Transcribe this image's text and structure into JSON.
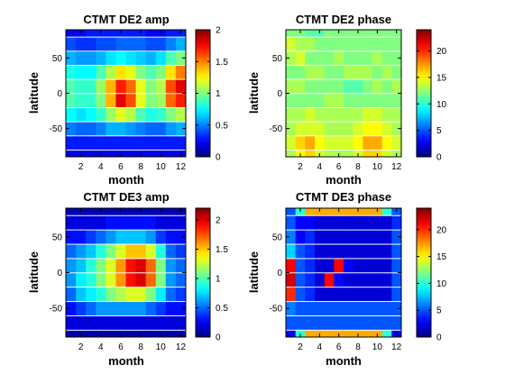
{
  "figure": {
    "panels": [
      {
        "id": "de2-amp",
        "title": "CTMT DE2 amp",
        "xlabel": "month",
        "ylabel": "latitude",
        "x_ticks": [
          "2",
          "4",
          "6",
          "8",
          "10",
          "12"
        ],
        "y_ticks": [
          "50",
          "0",
          "-50"
        ],
        "colorbar_ticks": [
          "2",
          "1.5",
          "1",
          "0.5",
          "0"
        ]
      },
      {
        "id": "de2-phase",
        "title": "CTMT DE2 phase",
        "xlabel": "month",
        "ylabel": "latitude",
        "x_ticks": [
          "2",
          "4",
          "6",
          "8",
          "10",
          "12"
        ],
        "y_ticks": [
          "50",
          "0",
          "-50"
        ],
        "colorbar_ticks": [
          "20",
          "15",
          "10",
          "5",
          "0"
        ]
      },
      {
        "id": "de3-amp",
        "title": "CTMT DE3 amp",
        "xlabel": "month",
        "ylabel": "latitude",
        "x_ticks": [
          "2",
          "4",
          "6",
          "8",
          "10",
          "12"
        ],
        "y_ticks": [
          "50",
          "0",
          "-50"
        ],
        "colorbar_ticks": [
          "2",
          "1.5",
          "1",
          "0.5",
          "0"
        ]
      },
      {
        "id": "de3-phase",
        "title": "CTMT DE3 phase",
        "xlabel": "month",
        "ylabel": "latitude",
        "x_ticks": [
          "2",
          "4",
          "6",
          "8",
          "10",
          "12"
        ],
        "y_ticks": [
          "50",
          "0",
          "-50"
        ],
        "colorbar_ticks": [
          "20",
          "15",
          "10",
          "5",
          "0"
        ]
      }
    ]
  },
  "chart_data": [
    {
      "type": "heatmap",
      "title": "CTMT DE2 amp",
      "xlabel": "month",
      "ylabel": "latitude",
      "x": [
        1,
        2,
        3,
        4,
        5,
        6,
        7,
        8,
        9,
        10,
        11,
        12
      ],
      "y": [
        90,
        70,
        50,
        30,
        10,
        -10,
        -30,
        -50,
        -70,
        -90
      ],
      "z": [
        [
          0.2,
          0.25,
          0.3,
          0.3,
          0.3,
          0.3,
          0.3,
          0.3,
          0.25,
          0.25,
          0.3,
          0.3
        ],
        [
          0.4,
          0.35,
          0.35,
          0.4,
          0.4,
          0.45,
          0.45,
          0.45,
          0.4,
          0.4,
          0.5,
          0.6
        ],
        [
          0.6,
          0.55,
          0.55,
          0.6,
          0.7,
          0.75,
          0.7,
          0.65,
          0.6,
          0.7,
          0.9,
          1.0
        ],
        [
          0.8,
          0.75,
          0.75,
          0.9,
          1.1,
          1.3,
          1.2,
          1.0,
          0.9,
          1.0,
          1.3,
          1.5
        ],
        [
          0.9,
          0.85,
          0.85,
          1.05,
          1.4,
          1.7,
          1.55,
          1.2,
          1.0,
          1.1,
          1.6,
          1.8
        ],
        [
          0.9,
          0.85,
          0.85,
          1.0,
          1.4,
          1.8,
          1.6,
          1.2,
          1.0,
          1.05,
          1.55,
          1.7
        ],
        [
          0.75,
          0.7,
          0.75,
          0.85,
          1.05,
          1.2,
          1.1,
          0.9,
          0.8,
          0.85,
          1.0,
          1.1
        ],
        [
          0.5,
          0.45,
          0.45,
          0.5,
          0.6,
          0.6,
          0.55,
          0.5,
          0.45,
          0.45,
          0.55,
          0.6
        ],
        [
          0.3,
          0.3,
          0.3,
          0.3,
          0.3,
          0.3,
          0.3,
          0.3,
          0.3,
          0.3,
          0.3,
          0.3
        ],
        [
          0.2,
          0.2,
          0.2,
          0.2,
          0.2,
          0.2,
          0.2,
          0.2,
          0.2,
          0.2,
          0.2,
          0.2
        ]
      ],
      "clim": [
        0,
        2
      ],
      "xlim": [
        1,
        12
      ],
      "ylim": [
        -90,
        90
      ],
      "colormap": "jet"
    },
    {
      "type": "heatmap",
      "title": "CTMT DE2 phase",
      "xlabel": "month",
      "ylabel": "latitude",
      "x": [
        1,
        2,
        3,
        4,
        5,
        6,
        7,
        8,
        9,
        10,
        11,
        12
      ],
      "y": [
        90,
        70,
        50,
        30,
        10,
        -10,
        -30,
        -50,
        -70,
        -90
      ],
      "z": [
        [
          12,
          12,
          11,
          11,
          12,
          12,
          12,
          12,
          12,
          12,
          12,
          12
        ],
        [
          14,
          13,
          13,
          12,
          12,
          12,
          12,
          12,
          12,
          12,
          12,
          12
        ],
        [
          13,
          14,
          12,
          12,
          12,
          13,
          12,
          12,
          12,
          13,
          12,
          12
        ],
        [
          12,
          12,
          13,
          13,
          12,
          12,
          13,
          13,
          13,
          12,
          13,
          12
        ],
        [
          13,
          13,
          12,
          12,
          12,
          12,
          11,
          11,
          12,
          13,
          12,
          13
        ],
        [
          12,
          12,
          12,
          12,
          13,
          13,
          12,
          12,
          12,
          12,
          12,
          12
        ],
        [
          13,
          13,
          14,
          13,
          13,
          13,
          13,
          13,
          14,
          14,
          13,
          13
        ],
        [
          13,
          14,
          14,
          14,
          13,
          13,
          13,
          14,
          15,
          15,
          14,
          13
        ],
        [
          14,
          16,
          17,
          15,
          14,
          14,
          14,
          15,
          17,
          17,
          15,
          14
        ],
        [
          13,
          15,
          16,
          14,
          13,
          13,
          13,
          14,
          16,
          16,
          14,
          13
        ]
      ],
      "clim": [
        0,
        24
      ],
      "xlim": [
        1,
        12
      ],
      "ylim": [
        -90,
        90
      ],
      "colormap": "jet"
    },
    {
      "type": "heatmap",
      "title": "CTMT DE3 amp",
      "xlabel": "month",
      "ylabel": "latitude",
      "x": [
        1,
        2,
        3,
        4,
        5,
        6,
        7,
        8,
        9,
        10,
        11,
        12
      ],
      "y": [
        90,
        70,
        50,
        30,
        10,
        -10,
        -30,
        -50,
        -70,
        -90
      ],
      "z": [
        [
          0.1,
          0.1,
          0.1,
          0.1,
          0.1,
          0.1,
          0.1,
          0.1,
          0.1,
          0.1,
          0.1,
          0.1
        ],
        [
          0.2,
          0.2,
          0.2,
          0.2,
          0.3,
          0.3,
          0.3,
          0.3,
          0.3,
          0.2,
          0.2,
          0.2
        ],
        [
          0.3,
          0.3,
          0.4,
          0.5,
          0.6,
          0.7,
          0.7,
          0.7,
          0.6,
          0.4,
          0.3,
          0.3
        ],
        [
          0.5,
          0.6,
          0.7,
          0.9,
          1.1,
          1.3,
          1.5,
          1.5,
          1.3,
          0.9,
          0.5,
          0.4
        ],
        [
          0.6,
          0.7,
          0.9,
          1.1,
          1.3,
          1.6,
          1.9,
          2.0,
          1.7,
          1.1,
          0.6,
          0.5
        ],
        [
          0.6,
          0.8,
          0.9,
          1.1,
          1.3,
          1.6,
          1.9,
          2.0,
          1.7,
          1.1,
          0.6,
          0.5
        ],
        [
          0.5,
          0.7,
          0.8,
          0.9,
          1.1,
          1.2,
          1.3,
          1.3,
          1.1,
          0.8,
          0.5,
          0.4
        ],
        [
          0.3,
          0.4,
          0.5,
          0.6,
          0.6,
          0.6,
          0.6,
          0.6,
          0.5,
          0.4,
          0.3,
          0.3
        ],
        [
          0.2,
          0.2,
          0.2,
          0.2,
          0.2,
          0.2,
          0.2,
          0.2,
          0.2,
          0.2,
          0.2,
          0.2
        ],
        [
          0.1,
          0.1,
          0.1,
          0.1,
          0.1,
          0.1,
          0.1,
          0.1,
          0.1,
          0.1,
          0.1,
          0.1
        ]
      ],
      "clim": [
        0,
        2.2
      ],
      "xlim": [
        1,
        12
      ],
      "ylim": [
        -90,
        90
      ],
      "colormap": "jet"
    },
    {
      "type": "heatmap",
      "title": "CTMT DE3 phase",
      "xlabel": "month",
      "ylabel": "latitude",
      "x": [
        1,
        2,
        3,
        4,
        5,
        6,
        7,
        8,
        9,
        10,
        11,
        12
      ],
      "y": [
        90,
        70,
        50,
        30,
        10,
        -10,
        -30,
        -50,
        -70,
        -90
      ],
      "z": [
        [
          5,
          10,
          17,
          17,
          17,
          17,
          17,
          17,
          17,
          17,
          10,
          5
        ],
        [
          5,
          3,
          3,
          2,
          2,
          2,
          2,
          2,
          2,
          2,
          2,
          4
        ],
        [
          6,
          3,
          4,
          2,
          2,
          2,
          2,
          2,
          2,
          2,
          2,
          5
        ],
        [
          8,
          5,
          4,
          2,
          2,
          2,
          2,
          2,
          2,
          2,
          2,
          5
        ],
        [
          21,
          5,
          4,
          2,
          2,
          21,
          3,
          2,
          2,
          2,
          2,
          5
        ],
        [
          22,
          5,
          4,
          2,
          21,
          3,
          2,
          2,
          2,
          2,
          2,
          5
        ],
        [
          20,
          5,
          4,
          2,
          2,
          2,
          2,
          2,
          2,
          2,
          2,
          5
        ],
        [
          6,
          5,
          5,
          5,
          5,
          5,
          5,
          5,
          5,
          5,
          5,
          5
        ],
        [
          5,
          5,
          5,
          5,
          5,
          5,
          5,
          5,
          5,
          5,
          5,
          5
        ],
        [
          3,
          10,
          17,
          17,
          17,
          17,
          17,
          17,
          17,
          17,
          10,
          3
        ]
      ],
      "clim": [
        0,
        24
      ],
      "xlim": [
        1,
        12
      ],
      "ylim": [
        -90,
        90
      ],
      "colormap": "jet"
    }
  ]
}
